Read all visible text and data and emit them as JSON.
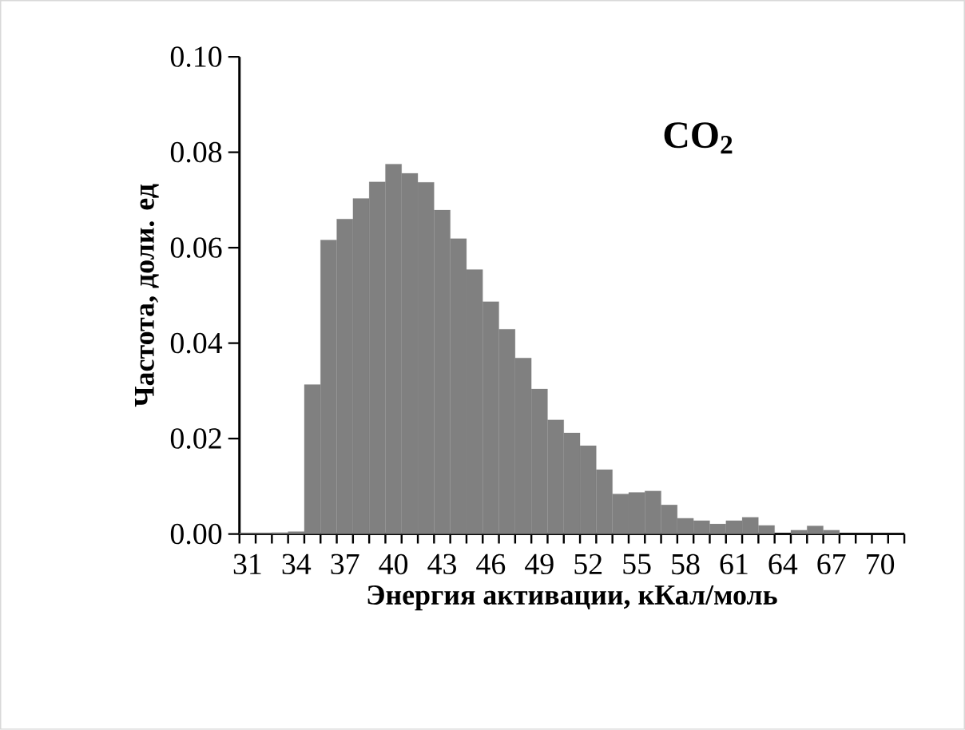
{
  "chart_data": {
    "type": "bar",
    "xlabel": "Энергия активации, кКал/моль",
    "ylabel": "Частота, доли. ед",
    "annotations": [
      "**CO$_{2}$**"
    ],
    "categories": [
      "31",
      null,
      null,
      "34",
      null,
      null,
      "37",
      null,
      null,
      "40",
      null,
      null,
      "43",
      null,
      null,
      "46",
      null,
      null,
      "49",
      null,
      null,
      "52",
      null,
      null,
      "55",
      null,
      null,
      "58",
      null,
      null,
      "61",
      null,
      null,
      "64",
      null,
      null,
      "67",
      null,
      null,
      "70",
      null
    ],
    "values": [
      0.0002,
      0.0002,
      0.0003,
      0.0005,
      0.0313,
      0.0616,
      0.066,
      0.0703,
      0.0738,
      0.0775,
      0.0756,
      0.0737,
      0.0679,
      0.0619,
      0.0554,
      0.0487,
      0.0429,
      0.0369,
      0.0304,
      0.0239,
      0.0212,
      0.0185,
      0.0135,
      0.0084,
      0.0087,
      0.009,
      0.0061,
      0.0033,
      0.0028,
      0.0021,
      0.0028,
      0.0035,
      0.0018,
      0,
      0.0008,
      0.0017,
      0.0008,
      0,
      0,
      0,
      0
    ],
    "color": "#808080",
    "ylim": [
      0,
      0.1
    ],
    "yticks": [
      {
        "value": 0,
        "label": "0.00"
      },
      {
        "value": 0.02,
        "label": "0.02"
      },
      {
        "value": 0.04,
        "label": "0.04"
      },
      {
        "value": 0.06,
        "label": "0.06"
      },
      {
        "value": 0.08,
        "label": "0.08"
      },
      {
        "value": 0.1,
        "label": "0.10"
      }
    ]
  }
}
